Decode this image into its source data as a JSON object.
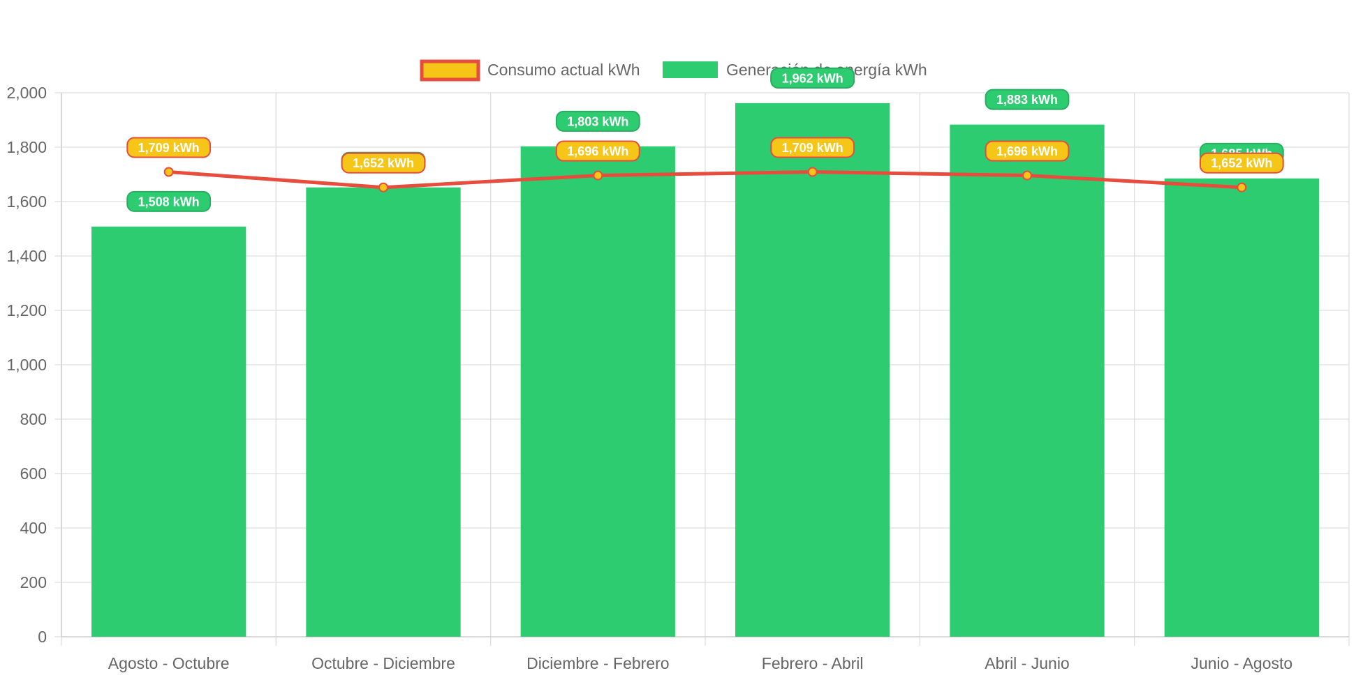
{
  "chart_data": {
    "type": "bar",
    "categories": [
      "Agosto - Octubre",
      "Octubre - Diciembre",
      "Diciembre - Febrero",
      "Febrero - Abril",
      "Abril - Junio",
      "Junio - Agosto"
    ],
    "series": [
      {
        "name": "Consumo actual kWh",
        "type": "line",
        "values": [
          1709,
          1652,
          1696,
          1709,
          1696,
          1652
        ],
        "labels": [
          "1,709 kWh",
          "1,652 kWh",
          "1,696 kWh",
          "1,709 kWh",
          "1,696 kWh",
          "1,652 kWh"
        ],
        "color": "#e74c3c",
        "fill": "#f5c518"
      },
      {
        "name": "Generación de energía kWh",
        "type": "bar",
        "values": [
          1508,
          1652,
          1803,
          1962,
          1883,
          1685
        ],
        "labels": [
          "1,508 kWh",
          "1,652 kWh",
          "1,803 kWh",
          "1,962 kWh",
          "1,883 kWh",
          "1,685 kWh"
        ],
        "color": "#2ecc71"
      }
    ],
    "ylim": [
      0,
      2000
    ],
    "yticks": [
      0,
      200,
      400,
      600,
      800,
      1000,
      1200,
      1400,
      1600,
      1800,
      2000
    ],
    "ytick_labels": [
      "0",
      "200",
      "400",
      "600",
      "800",
      "1,000",
      "1,200",
      "1,400",
      "1,600",
      "1,800",
      "2,000"
    ],
    "legend_position": "top-center",
    "grid": true
  }
}
